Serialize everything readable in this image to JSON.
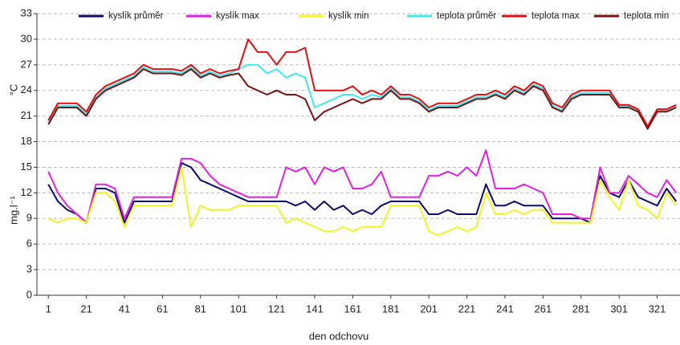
{
  "chart_data": {
    "type": "line",
    "x_label": "den odchovu",
    "y_label_top": "°C",
    "y_label_bottom": "mg.l⁻¹",
    "x": [
      1,
      6,
      11,
      16,
      21,
      26,
      31,
      36,
      41,
      46,
      51,
      56,
      61,
      66,
      71,
      76,
      81,
      86,
      91,
      96,
      101,
      106,
      111,
      116,
      121,
      126,
      131,
      136,
      141,
      146,
      151,
      156,
      161,
      166,
      171,
      176,
      181,
      186,
      191,
      196,
      201,
      206,
      211,
      216,
      221,
      226,
      231,
      236,
      241,
      246,
      251,
      256,
      261,
      266,
      271,
      276,
      281,
      286,
      291,
      296,
      301,
      306,
      311,
      316,
      321,
      326,
      331
    ],
    "xlim": [
      -5,
      333
    ],
    "xticks": [
      1,
      21,
      41,
      61,
      81,
      101,
      121,
      141,
      161,
      181,
      201,
      221,
      241,
      261,
      281,
      301,
      321
    ],
    "ylim": [
      0,
      33
    ],
    "yticks": [
      0,
      3,
      6,
      9,
      12,
      15,
      18,
      21,
      24,
      27,
      30,
      33
    ],
    "grid": true,
    "series": [
      {
        "name": "kyslík průměr",
        "color": "#0b0b6e",
        "values": [
          13,
          11,
          10,
          9.5,
          8.5,
          12.5,
          12.5,
          12,
          8.5,
          11,
          11,
          11,
          11,
          11,
          15.5,
          15,
          13.5,
          13,
          12.5,
          12,
          11.5,
          11,
          11,
          11,
          11,
          11,
          10.5,
          11,
          10,
          11,
          10,
          10.5,
          9.5,
          10,
          9.5,
          10.5,
          11,
          11,
          11,
          11,
          9.5,
          9.5,
          10,
          9.5,
          9.5,
          9.5,
          13,
          10.5,
          10.5,
          11,
          10.5,
          10.5,
          10.5,
          9,
          9,
          9,
          9,
          8.5,
          14,
          12,
          11.5,
          13.5,
          11.5,
          11,
          10.5,
          12.5,
          11
        ]
      },
      {
        "name": "kyslík max",
        "color": "#e020e0",
        "values": [
          14.5,
          12,
          10.5,
          9.5,
          8.5,
          13,
          13,
          12.5,
          9,
          11.5,
          11.5,
          11.5,
          11.5,
          11.5,
          16,
          16,
          15.5,
          14,
          13,
          12.5,
          12,
          11.5,
          11.5,
          11.5,
          11.5,
          15,
          14.5,
          15,
          13,
          15,
          14.5,
          15,
          12.5,
          12.5,
          13,
          14.5,
          11.5,
          11.5,
          11.5,
          11.5,
          14,
          14,
          14.5,
          14,
          15,
          14,
          17,
          12.5,
          12.5,
          12.5,
          13,
          12.5,
          12,
          9.5,
          9.5,
          9.5,
          9,
          9,
          15,
          12,
          12,
          14,
          13,
          12,
          11.5,
          13.5,
          12
        ]
      },
      {
        "name": "kyslík min",
        "color": "#f2f224",
        "values": [
          9,
          8.5,
          9,
          9,
          8.5,
          12,
          12,
          11,
          8,
          10.5,
          10.5,
          10.5,
          10.5,
          10.5,
          15,
          8,
          10.5,
          10,
          10,
          10,
          10.5,
          10.5,
          10.5,
          10.5,
          10.5,
          8.5,
          9,
          8.5,
          8,
          7.5,
          7.5,
          8,
          7.5,
          8,
          8,
          8,
          10.5,
          10.5,
          10.5,
          10.5,
          7.5,
          7,
          7.5,
          8,
          7.5,
          8,
          12,
          9.5,
          9.5,
          10,
          9.5,
          10,
          10,
          8.5,
          8.5,
          8.5,
          8.5,
          8.5,
          13.5,
          11.5,
          10,
          13.5,
          10.5,
          10,
          9,
          12,
          10.5
        ]
      },
      {
        "name": "teplota průměr",
        "color": "#40e8f0",
        "values": [
          20.3,
          22.2,
          22.2,
          22.2,
          21.2,
          23.2,
          24.2,
          24.7,
          25.2,
          25.7,
          26.7,
          26.2,
          26.2,
          26.2,
          26,
          26.7,
          25.7,
          26.2,
          25.7,
          26,
          26.5,
          27,
          27,
          26,
          26.5,
          25.5,
          26,
          25.5,
          22,
          22.5,
          23,
          23.5,
          23.5,
          23,
          23.5,
          23.2,
          24.2,
          23.2,
          23.2,
          22.7,
          21.7,
          22.2,
          22.2,
          22.2,
          22.7,
          23.2,
          23.2,
          23.7,
          23.2,
          24.2,
          23.7,
          24.7,
          24.2,
          22.2,
          21.7,
          23.2,
          23.7,
          23.7,
          23.7,
          23.7,
          22.2,
          22.2,
          21.7,
          19.7,
          21.7,
          21.7,
          22.2
        ]
      },
      {
        "name": "teplota max",
        "color": "#e01010",
        "values": [
          20.5,
          22.5,
          22.5,
          22.5,
          21.5,
          23.5,
          24.5,
          25,
          25.5,
          26,
          27,
          26.5,
          26.5,
          26.5,
          26.3,
          27,
          26,
          26.5,
          26,
          26.3,
          26.5,
          30,
          28.5,
          28.5,
          27,
          28.5,
          28.5,
          29,
          24,
          24,
          24,
          24,
          24.5,
          23.5,
          24,
          23.5,
          24.5,
          23.5,
          23.5,
          23,
          22,
          22.5,
          22.5,
          22.5,
          23,
          23.5,
          23.5,
          24,
          23.5,
          24.5,
          24,
          25,
          24.5,
          22.5,
          22,
          23.5,
          24,
          24,
          24,
          24,
          22.3,
          22.3,
          21.8,
          19.8,
          21.8,
          21.8,
          22.3
        ]
      },
      {
        "name": "teplota min",
        "color": "#7a1212",
        "values": [
          20,
          22,
          22,
          22,
          21,
          23,
          24,
          24.5,
          25,
          25.5,
          26.5,
          26,
          26,
          26,
          25.8,
          26.5,
          25.5,
          26,
          25.5,
          25.8,
          26,
          24.5,
          24,
          23.5,
          24,
          23.5,
          23.5,
          23,
          20.5,
          21.5,
          22,
          22.5,
          23,
          22.5,
          23,
          23,
          24,
          23,
          23,
          22.5,
          21.5,
          22,
          22,
          22,
          22.5,
          23,
          23,
          23.5,
          23,
          24,
          23.5,
          24.5,
          24,
          22,
          21.5,
          23,
          23.5,
          23.5,
          23.5,
          23.5,
          22,
          22,
          21.5,
          19.5,
          21.5,
          21.5,
          22
        ]
      }
    ]
  }
}
